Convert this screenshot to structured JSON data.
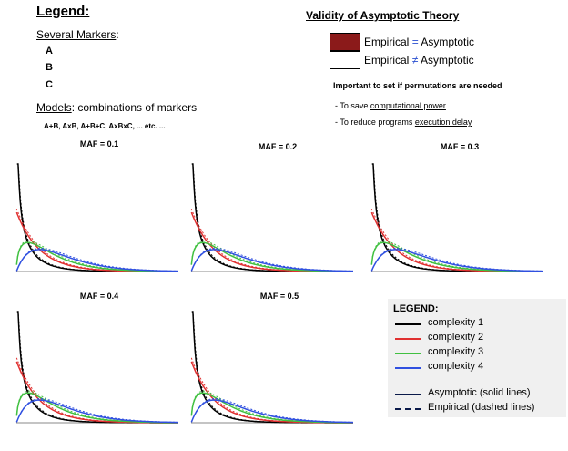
{
  "legend_title": "Legend:",
  "markers": {
    "heading": "Several Markers",
    "heading_suffix": ":",
    "items": [
      "A",
      "B",
      "C"
    ]
  },
  "models": {
    "heading": "Models",
    "heading_suffix": ": combinations of markers",
    "example": "A+B, AxB, A+B+C, AxBxC, ... etc. ..."
  },
  "validity": {
    "title": "Validity of Asymptotic Theory",
    "rows": [
      {
        "left": "Empirical ",
        "op": "=",
        "right": " Asymptotic",
        "fill": "#8b1a1a"
      },
      {
        "left": "Empirical ",
        "op": "≠",
        "right": " Asymptotic",
        "fill": "#ffffff"
      }
    ],
    "important": "Important to set if permutations are needed",
    "bullets": [
      {
        "prefix": "- To save ",
        "underlined": "computational power"
      },
      {
        "prefix": "- To reduce programs ",
        "underlined": "execution delay"
      }
    ]
  },
  "legend_box": {
    "heading": "LEGEND:",
    "items": [
      {
        "label": "complexity 1",
        "color": "#000000",
        "style": "solid"
      },
      {
        "label": "complexity 2",
        "color": "#e03030",
        "style": "solid"
      },
      {
        "label": "complexity 3",
        "color": "#40c040",
        "style": "solid"
      },
      {
        "label": "complexity 4",
        "color": "#3050e0",
        "style": "solid"
      },
      {
        "label": "Asymptotic (solid lines)",
        "color": "#0a1a4a",
        "style": "solid"
      },
      {
        "label": "Empirical (dashed lines)",
        "color": "#0a1a4a",
        "style": "dashed"
      }
    ]
  },
  "chart_data": [
    {
      "type": "line",
      "title": "MAF = 0.1",
      "series": [
        {
          "name": "complexity 1"
        },
        {
          "name": "complexity 2"
        },
        {
          "name": "complexity 3"
        },
        {
          "name": "complexity 4"
        }
      ]
    },
    {
      "type": "line",
      "title": "MAF = 0.2",
      "series": [
        {
          "name": "complexity 1"
        },
        {
          "name": "complexity 2"
        },
        {
          "name": "complexity 3"
        },
        {
          "name": "complexity 4"
        }
      ]
    },
    {
      "type": "line",
      "title": "MAF = 0.3",
      "series": [
        {
          "name": "complexity 1"
        },
        {
          "name": "complexity 2"
        },
        {
          "name": "complexity 3"
        },
        {
          "name": "complexity 4"
        }
      ]
    },
    {
      "type": "line",
      "title": "MAF = 0.4",
      "series": [
        {
          "name": "complexity 1"
        },
        {
          "name": "complexity 2"
        },
        {
          "name": "complexity 3"
        },
        {
          "name": "complexity 4"
        }
      ]
    },
    {
      "type": "line",
      "title": "MAF = 0.5",
      "series": [
        {
          "name": "complexity 1"
        },
        {
          "name": "complexity 2"
        },
        {
          "name": "complexity 3"
        },
        {
          "name": "complexity 4"
        }
      ]
    }
  ]
}
